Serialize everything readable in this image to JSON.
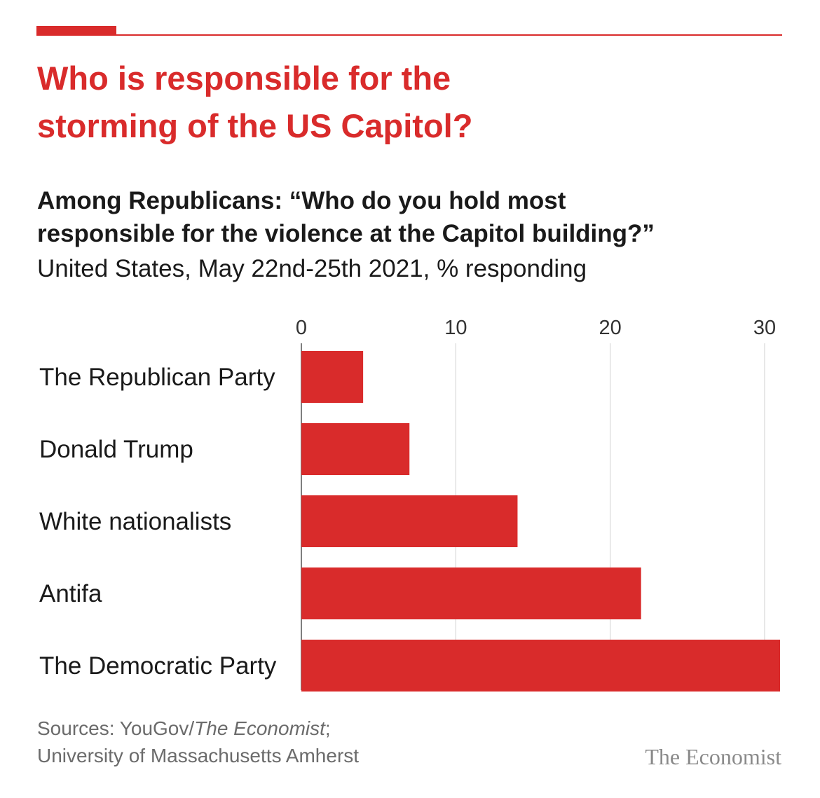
{
  "header": {
    "title_line1": "Who is responsible for the",
    "title_line2": "storming of the US Capitol?",
    "subtitle_line1": "Among Republicans: “Who do you hold most",
    "subtitle_line2": "responsible for the violence at the Capitol building?”",
    "subtitle_line3": "United States, May 22nd-25th 2021, % responding"
  },
  "footer": {
    "sources_prefix": "Sources: YouGov/",
    "sources_italic": "The Economist",
    "sources_suffix": ";",
    "sources_line2": "University of Massachusetts Amherst",
    "brand": "The Economist"
  },
  "colors": {
    "accent": "#d92b2b",
    "gridline": "#d9d9d9",
    "text": "#1a1a1a",
    "muted": "#6b6b6b"
  },
  "chart_data": {
    "type": "bar",
    "orientation": "horizontal",
    "categories": [
      "The Republican Party",
      "Donald Trump",
      "White nationalists",
      "Antifa",
      "The Democratic Party"
    ],
    "values": [
      4,
      7,
      14,
      22,
      31
    ],
    "xlim": [
      0,
      31
    ],
    "xticks": [
      0,
      10,
      20,
      30
    ],
    "xticks_position": "top",
    "unit": "% responding",
    "grid": true,
    "legend": "none"
  }
}
